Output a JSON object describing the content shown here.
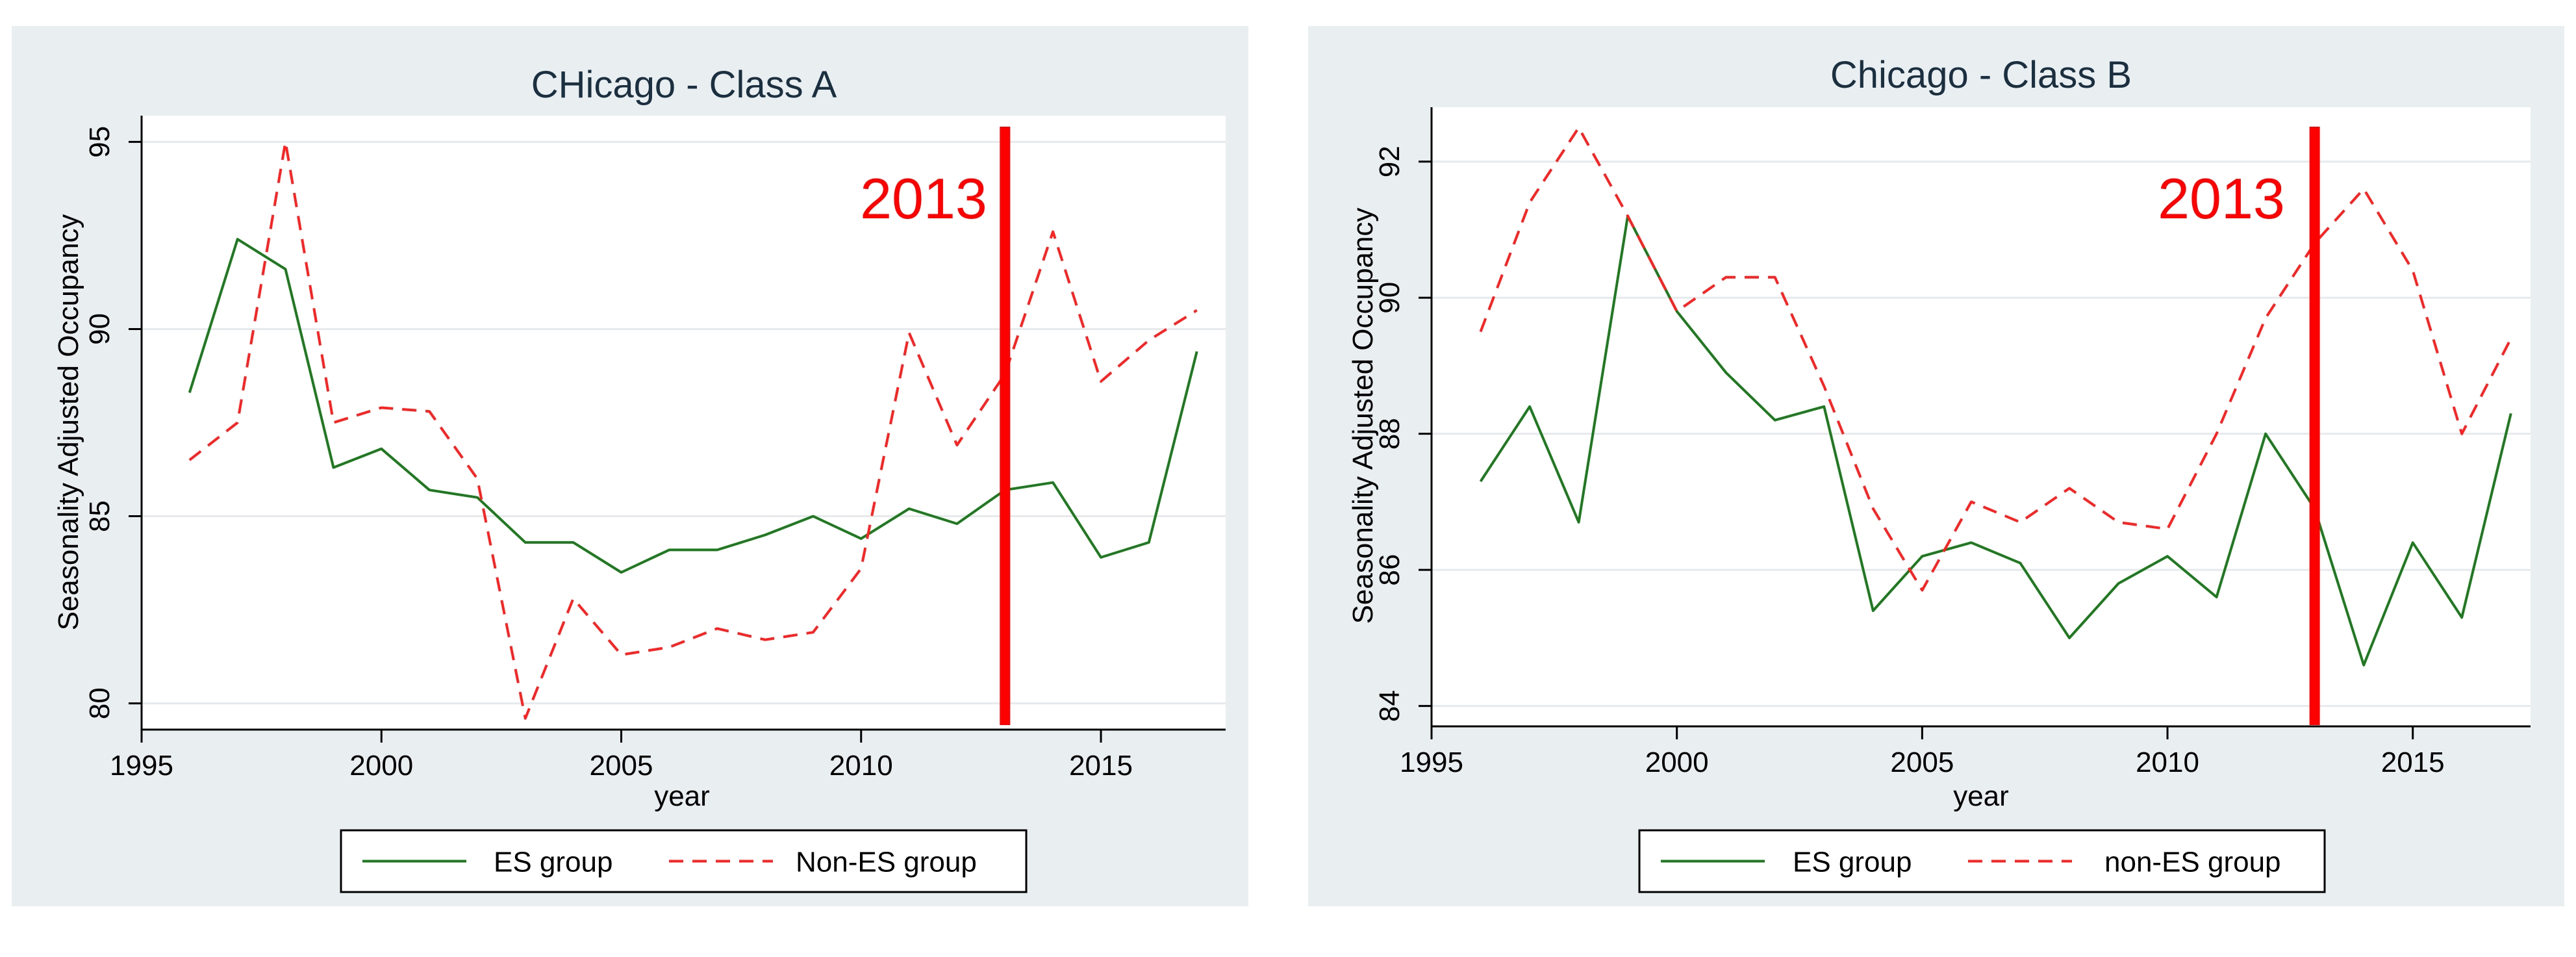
{
  "colors": {
    "panel_bg": "#e9eef0",
    "plot_bg": "#ffffff",
    "grid": "#e6eaec",
    "axis": "#000000",
    "title": "#1a2f3f",
    "es_line": "#1e7a1e",
    "non_es_line": "#ff2020",
    "marker_line": "#ff0000",
    "marker_text": "#ff0000"
  },
  "chart_data": [
    {
      "type": "line",
      "title": "CHicago - Class A",
      "xlabel": "year",
      "ylabel": "Seasonality Adjusted Occupancy",
      "xlim": [
        1995,
        2017.6
      ],
      "ylim": [
        79.3,
        95.7
      ],
      "xticks": [
        1995,
        2000,
        2005,
        2010,
        2015
      ],
      "yticks": [
        80,
        85,
        90,
        95
      ],
      "grid": true,
      "legend_position": "bottom",
      "marker": {
        "x": 2013,
        "label": "2013"
      },
      "x": [
        1996,
        1997,
        1998,
        1999,
        2000,
        2001,
        2002,
        2003,
        2004,
        2005,
        2006,
        2007,
        2008,
        2009,
        2010,
        2011,
        2012,
        2013,
        2014,
        2015,
        2016,
        2017
      ],
      "series": [
        {
          "name": "ES group",
          "style": "solid",
          "values": [
            88.3,
            92.4,
            91.6,
            86.3,
            86.8,
            85.7,
            85.5,
            84.3,
            84.3,
            83.5,
            84.1,
            84.1,
            84.5,
            85.0,
            84.4,
            85.2,
            84.8,
            85.7,
            85.9,
            83.9,
            84.3,
            89.4
          ]
        },
        {
          "name": "Non-ES group",
          "style": "dashed",
          "values": [
            86.5,
            87.5,
            95.0,
            87.5,
            87.9,
            87.8,
            86.0,
            79.6,
            82.8,
            81.3,
            81.5,
            82.0,
            81.7,
            81.9,
            83.6,
            89.9,
            86.9,
            88.8,
            92.6,
            88.6,
            89.7,
            90.5
          ]
        }
      ]
    },
    {
      "type": "line",
      "title": "Chicago - Class B",
      "xlabel": "year",
      "ylabel": "Seasonality Adjusted Occupancy",
      "xlim": [
        1995,
        2017.4
      ],
      "ylim": [
        83.7,
        92.8
      ],
      "xticks": [
        1995,
        2000,
        2005,
        2010,
        2015
      ],
      "yticks": [
        84,
        86,
        88,
        90,
        92
      ],
      "grid": true,
      "legend_position": "bottom",
      "marker": {
        "x": 2013,
        "label": "2013"
      },
      "x": [
        1996,
        1997,
        1998,
        1999,
        2000,
        2001,
        2002,
        2003,
        2004,
        2005,
        2006,
        2007,
        2008,
        2009,
        2010,
        2011,
        2012,
        2013,
        2014,
        2015,
        2016,
        2017
      ],
      "series": [
        {
          "name": "ES group",
          "style": "solid",
          "values": [
            87.3,
            88.4,
            86.7,
            91.2,
            89.8,
            88.9,
            88.2,
            88.4,
            85.4,
            86.2,
            86.4,
            86.1,
            85.0,
            85.8,
            86.2,
            85.6,
            88.0,
            86.9,
            84.6,
            86.4,
            85.3,
            88.3
          ]
        },
        {
          "name": "non-ES group",
          "style": "dashed",
          "values": [
            89.5,
            91.4,
            92.5,
            91.2,
            89.8,
            90.3,
            90.3,
            88.7,
            86.9,
            85.7,
            87.0,
            86.7,
            87.2,
            86.7,
            86.6,
            88.0,
            89.7,
            90.8,
            91.6,
            90.4,
            88.0,
            89.4
          ]
        }
      ]
    }
  ]
}
